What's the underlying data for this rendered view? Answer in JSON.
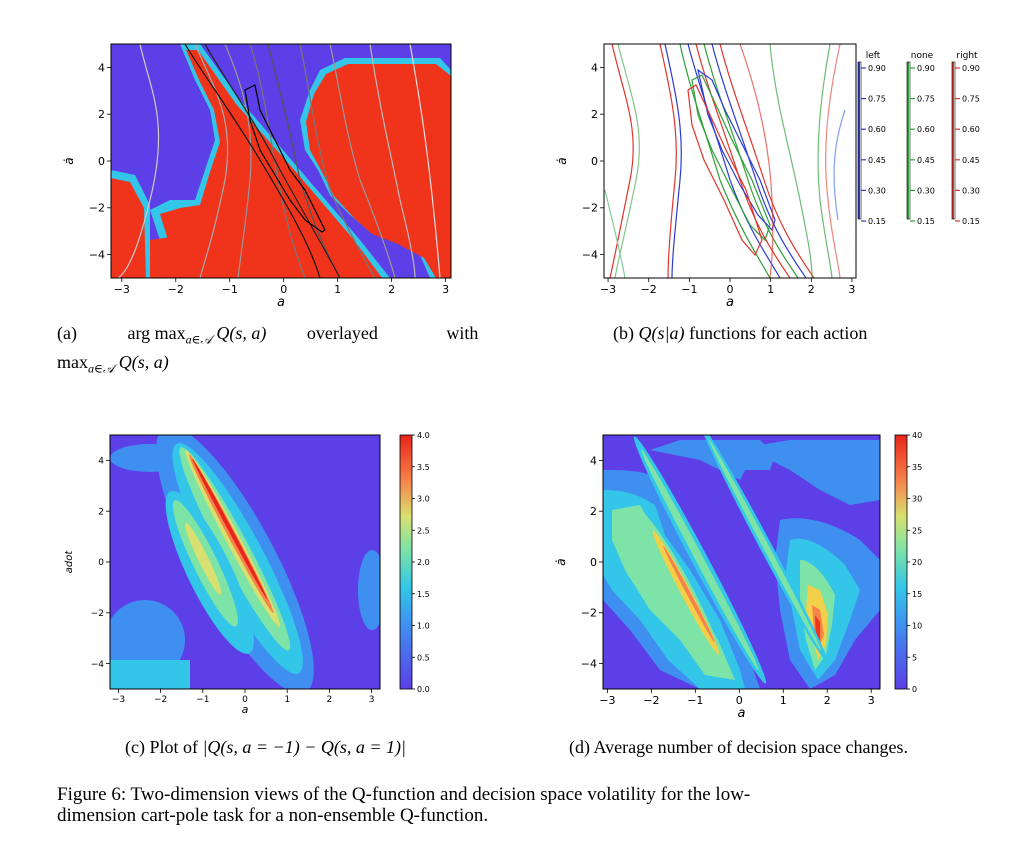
{
  "panels": {
    "a": {
      "xlabel": "a",
      "ylabel": "ȧ",
      "xticks": [
        "−3",
        "−2",
        "−1",
        "0",
        "1",
        "2",
        "3"
      ],
      "yticks": [
        "4",
        "2",
        "0",
        "−2",
        "−4"
      ],
      "caption_prefix": "(a)",
      "caption_math1": "arg max",
      "caption_sub1": "a∈𝒜",
      "caption_math2": "Q(s, a)",
      "caption_word1": "overlayed",
      "caption_word2": "with",
      "caption_math3": "max",
      "caption_sub3": "a∈𝒜",
      "caption_math4": "Q(s, a)"
    },
    "b": {
      "xlabel": "a",
      "ylabel": "ȧ",
      "xticks": [
        "−3",
        "−2",
        "−1",
        "0",
        "1",
        "2",
        "3"
      ],
      "yticks": [
        "4",
        "2",
        "0",
        "−2",
        "−4"
      ],
      "legend_titles": [
        "left",
        "none",
        "right"
      ],
      "legend_levels": [
        "0.90",
        "0.75",
        "0.60",
        "0.45",
        "0.30",
        "0.15"
      ],
      "legend_colors": [
        "#2b3bd6",
        "#2f9e3a",
        "#e0352b"
      ],
      "caption_prefix": "(b)",
      "caption_math": "Q(s|a)",
      "caption_text": "functions for each action"
    },
    "c": {
      "xlabel": "a",
      "ylabel": "adot",
      "xticks": [
        "−3",
        "−2",
        "−1",
        "0",
        "1",
        "2",
        "3"
      ],
      "yticks": [
        "4",
        "2",
        "0",
        "−2",
        "−4"
      ],
      "colorbar_ticks": [
        "4.0",
        "3.5",
        "3.0",
        "2.5",
        "2.0",
        "1.5",
        "1.0",
        "0.5",
        "0.0"
      ],
      "caption_prefix": "(c) Plot of",
      "caption_math": "|Q(s, a = −1) − Q(s, a = 1)|"
    },
    "d": {
      "xlabel": "a",
      "ylabel": "ȧ",
      "xticks": [
        "−3",
        "−2",
        "−1",
        "0",
        "1",
        "2",
        "3"
      ],
      "yticks": [
        "4",
        "2",
        "0",
        "−2",
        "−4"
      ],
      "colorbar_ticks": [
        "40",
        "35",
        "30",
        "25",
        "20",
        "15",
        "10",
        "5",
        "0"
      ],
      "caption": "(d) Average number of decision space changes."
    }
  },
  "figure_caption_line1": "Figure 6:  Two-dimension views of the Q-function and decision space volatility for the low-",
  "figure_caption_line2": "dimension cart-pole task for a non-ensemble Q-function.",
  "colors": {
    "blue": "#5c3fe6",
    "red": "#f0341c",
    "cyan": "#34c6e8",
    "yellow": "#f3d04a",
    "orange": "#f7834a",
    "green": "#7ee3a6",
    "lightblue": "#4aa3f0"
  }
}
